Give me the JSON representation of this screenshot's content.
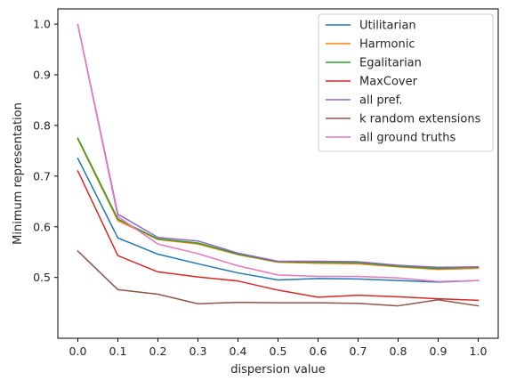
{
  "chart_data": {
    "type": "line",
    "xlabel": "dispersion value",
    "ylabel": "Minimum representation",
    "xlim": [
      -0.05,
      1.05
    ],
    "ylim": [
      0.38,
      1.03
    ],
    "x": [
      0.0,
      0.1,
      0.2,
      0.3,
      0.4,
      0.5,
      0.6,
      0.7,
      0.8,
      0.9,
      1.0
    ],
    "xticks": [
      "0.0",
      "0.1",
      "0.2",
      "0.3",
      "0.4",
      "0.5",
      "0.6",
      "0.7",
      "0.8",
      "0.9",
      "1.0"
    ],
    "yticks": [
      "0.5",
      "0.6",
      "0.7",
      "0.8",
      "0.9",
      "1.0"
    ],
    "grid": false,
    "legend_position": "top-right",
    "series": [
      {
        "name": "Utilitarian",
        "color": "#1f77b4",
        "values": [
          0.735,
          0.578,
          0.546,
          0.527,
          0.509,
          0.495,
          0.498,
          0.497,
          0.494,
          0.491,
          0.494
        ]
      },
      {
        "name": "Harmonic",
        "color": "#ff7f0e",
        "values": [
          0.773,
          0.612,
          0.575,
          0.566,
          0.545,
          0.53,
          0.528,
          0.527,
          0.521,
          0.516,
          0.518
        ]
      },
      {
        "name": "Egalitarian",
        "color": "#2ca02c",
        "values": [
          0.775,
          0.615,
          0.576,
          0.568,
          0.546,
          0.531,
          0.53,
          0.529,
          0.522,
          0.518,
          0.52
        ]
      },
      {
        "name": "MaxCover",
        "color": "#d62728",
        "values": [
          0.71,
          0.543,
          0.511,
          0.501,
          0.493,
          0.475,
          0.461,
          0.465,
          0.462,
          0.458,
          0.455
        ]
      },
      {
        "name": "all pref.",
        "color": "#9467bd",
        "values": [
          0.999,
          0.625,
          0.579,
          0.572,
          0.548,
          0.532,
          0.532,
          0.531,
          0.524,
          0.52,
          0.521
        ]
      },
      {
        "name": "k random extensions",
        "color": "#8c564b",
        "values": [
          0.552,
          0.476,
          0.467,
          0.448,
          0.451,
          0.45,
          0.45,
          0.449,
          0.444,
          0.456,
          0.444
        ]
      },
      {
        "name": "all ground truths",
        "color": "#e377c2",
        "values": [
          0.999,
          0.62,
          0.566,
          0.547,
          0.523,
          0.505,
          0.502,
          0.502,
          0.499,
          0.492,
          0.494
        ]
      }
    ]
  }
}
